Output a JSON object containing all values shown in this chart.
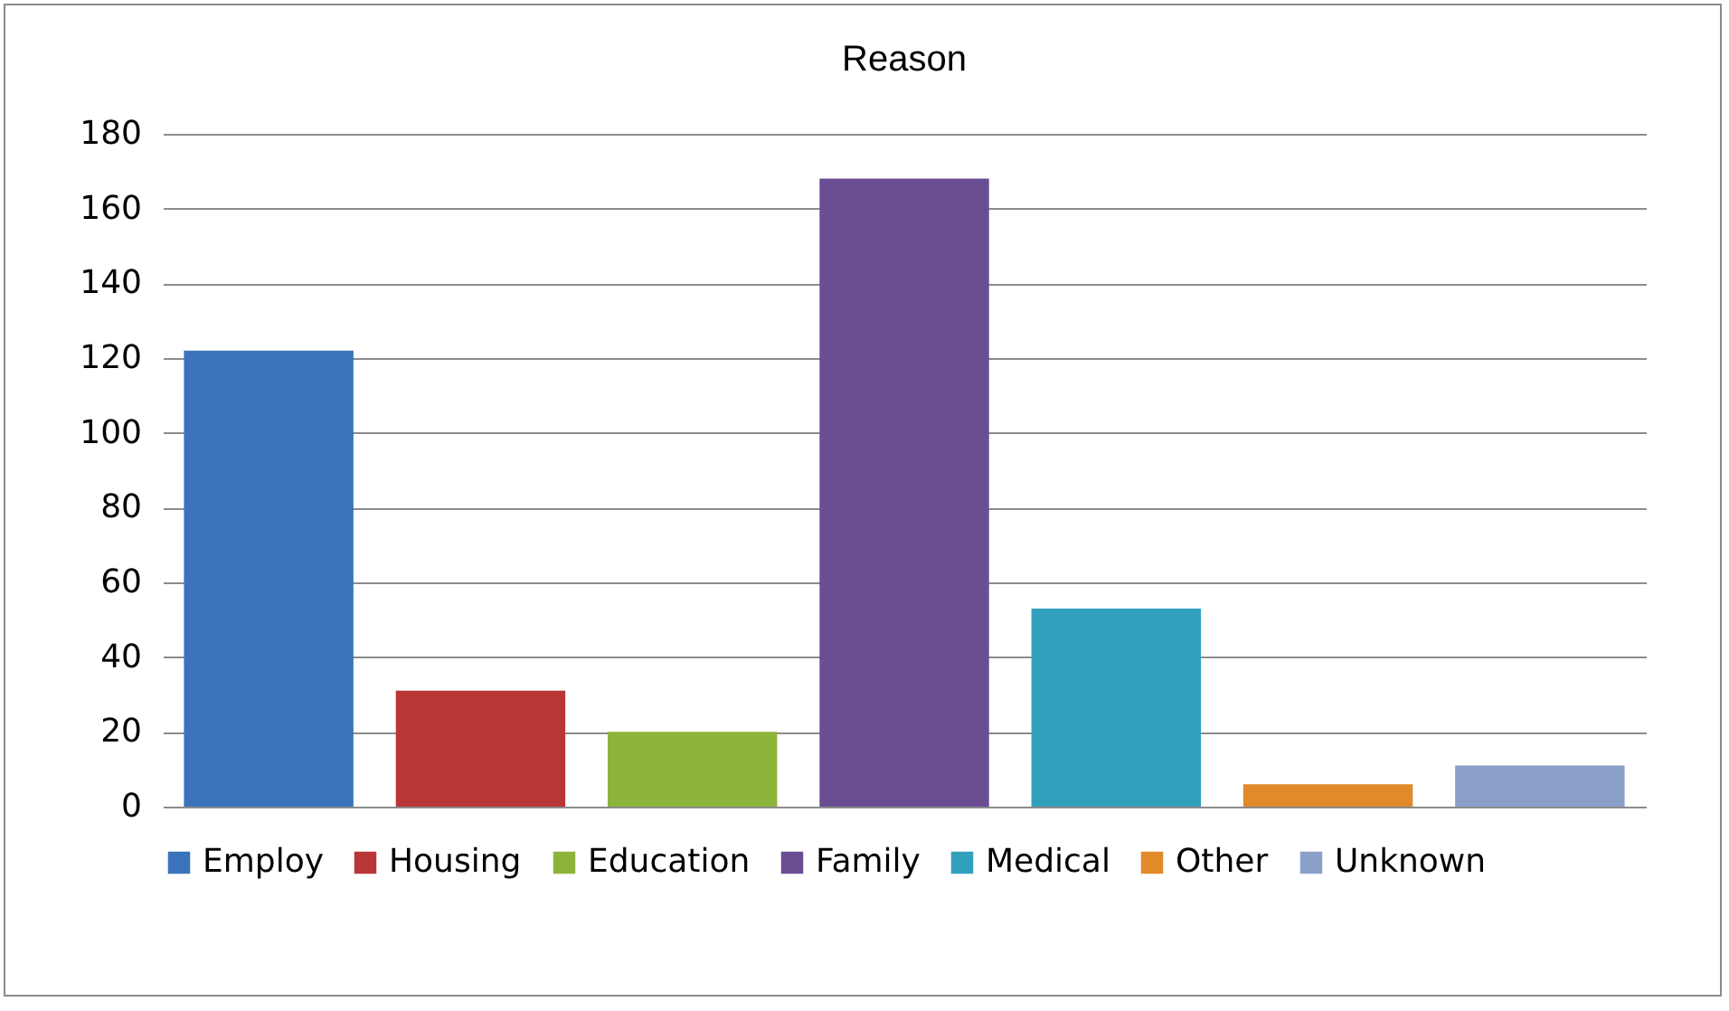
{
  "chart_data": {
    "type": "bar",
    "title": "Reason",
    "categories": [
      null,
      null,
      null,
      null,
      null,
      null,
      null
    ],
    "series": [
      {
        "name": "Employ",
        "color": "#3a73bb",
        "values": [
          122,
          null,
          null,
          null,
          null,
          null,
          null
        ]
      },
      {
        "name": "Housing",
        "color": "#b83636",
        "values": [
          null,
          31,
          null,
          null,
          null,
          null,
          null
        ]
      },
      {
        "name": "Education",
        "color": "#8cb43a",
        "values": [
          null,
          null,
          20,
          null,
          null,
          null,
          null
        ]
      },
      {
        "name": "Family",
        "color": "#6b4d94",
        "values": [
          null,
          null,
          null,
          168,
          null,
          null,
          null
        ]
      },
      {
        "name": "Medical",
        "color": "#31a0bd",
        "values": [
          null,
          null,
          null,
          null,
          53,
          null,
          null
        ]
      },
      {
        "name": "Other",
        "color": "#e08a2c",
        "values": [
          null,
          null,
          null,
          null,
          null,
          6,
          null
        ]
      },
      {
        "name": "Unknown",
        "color": "#8aa0c8",
        "values": [
          null,
          null,
          null,
          null,
          null,
          null,
          11
        ]
      }
    ],
    "ylim": [
      0,
      180
    ],
    "yticks": [
      0,
      20,
      40,
      60,
      80,
      100,
      120,
      140,
      160,
      180
    ],
    "grid": "y",
    "legend": "bottom",
    "tick_labels": "y"
  }
}
